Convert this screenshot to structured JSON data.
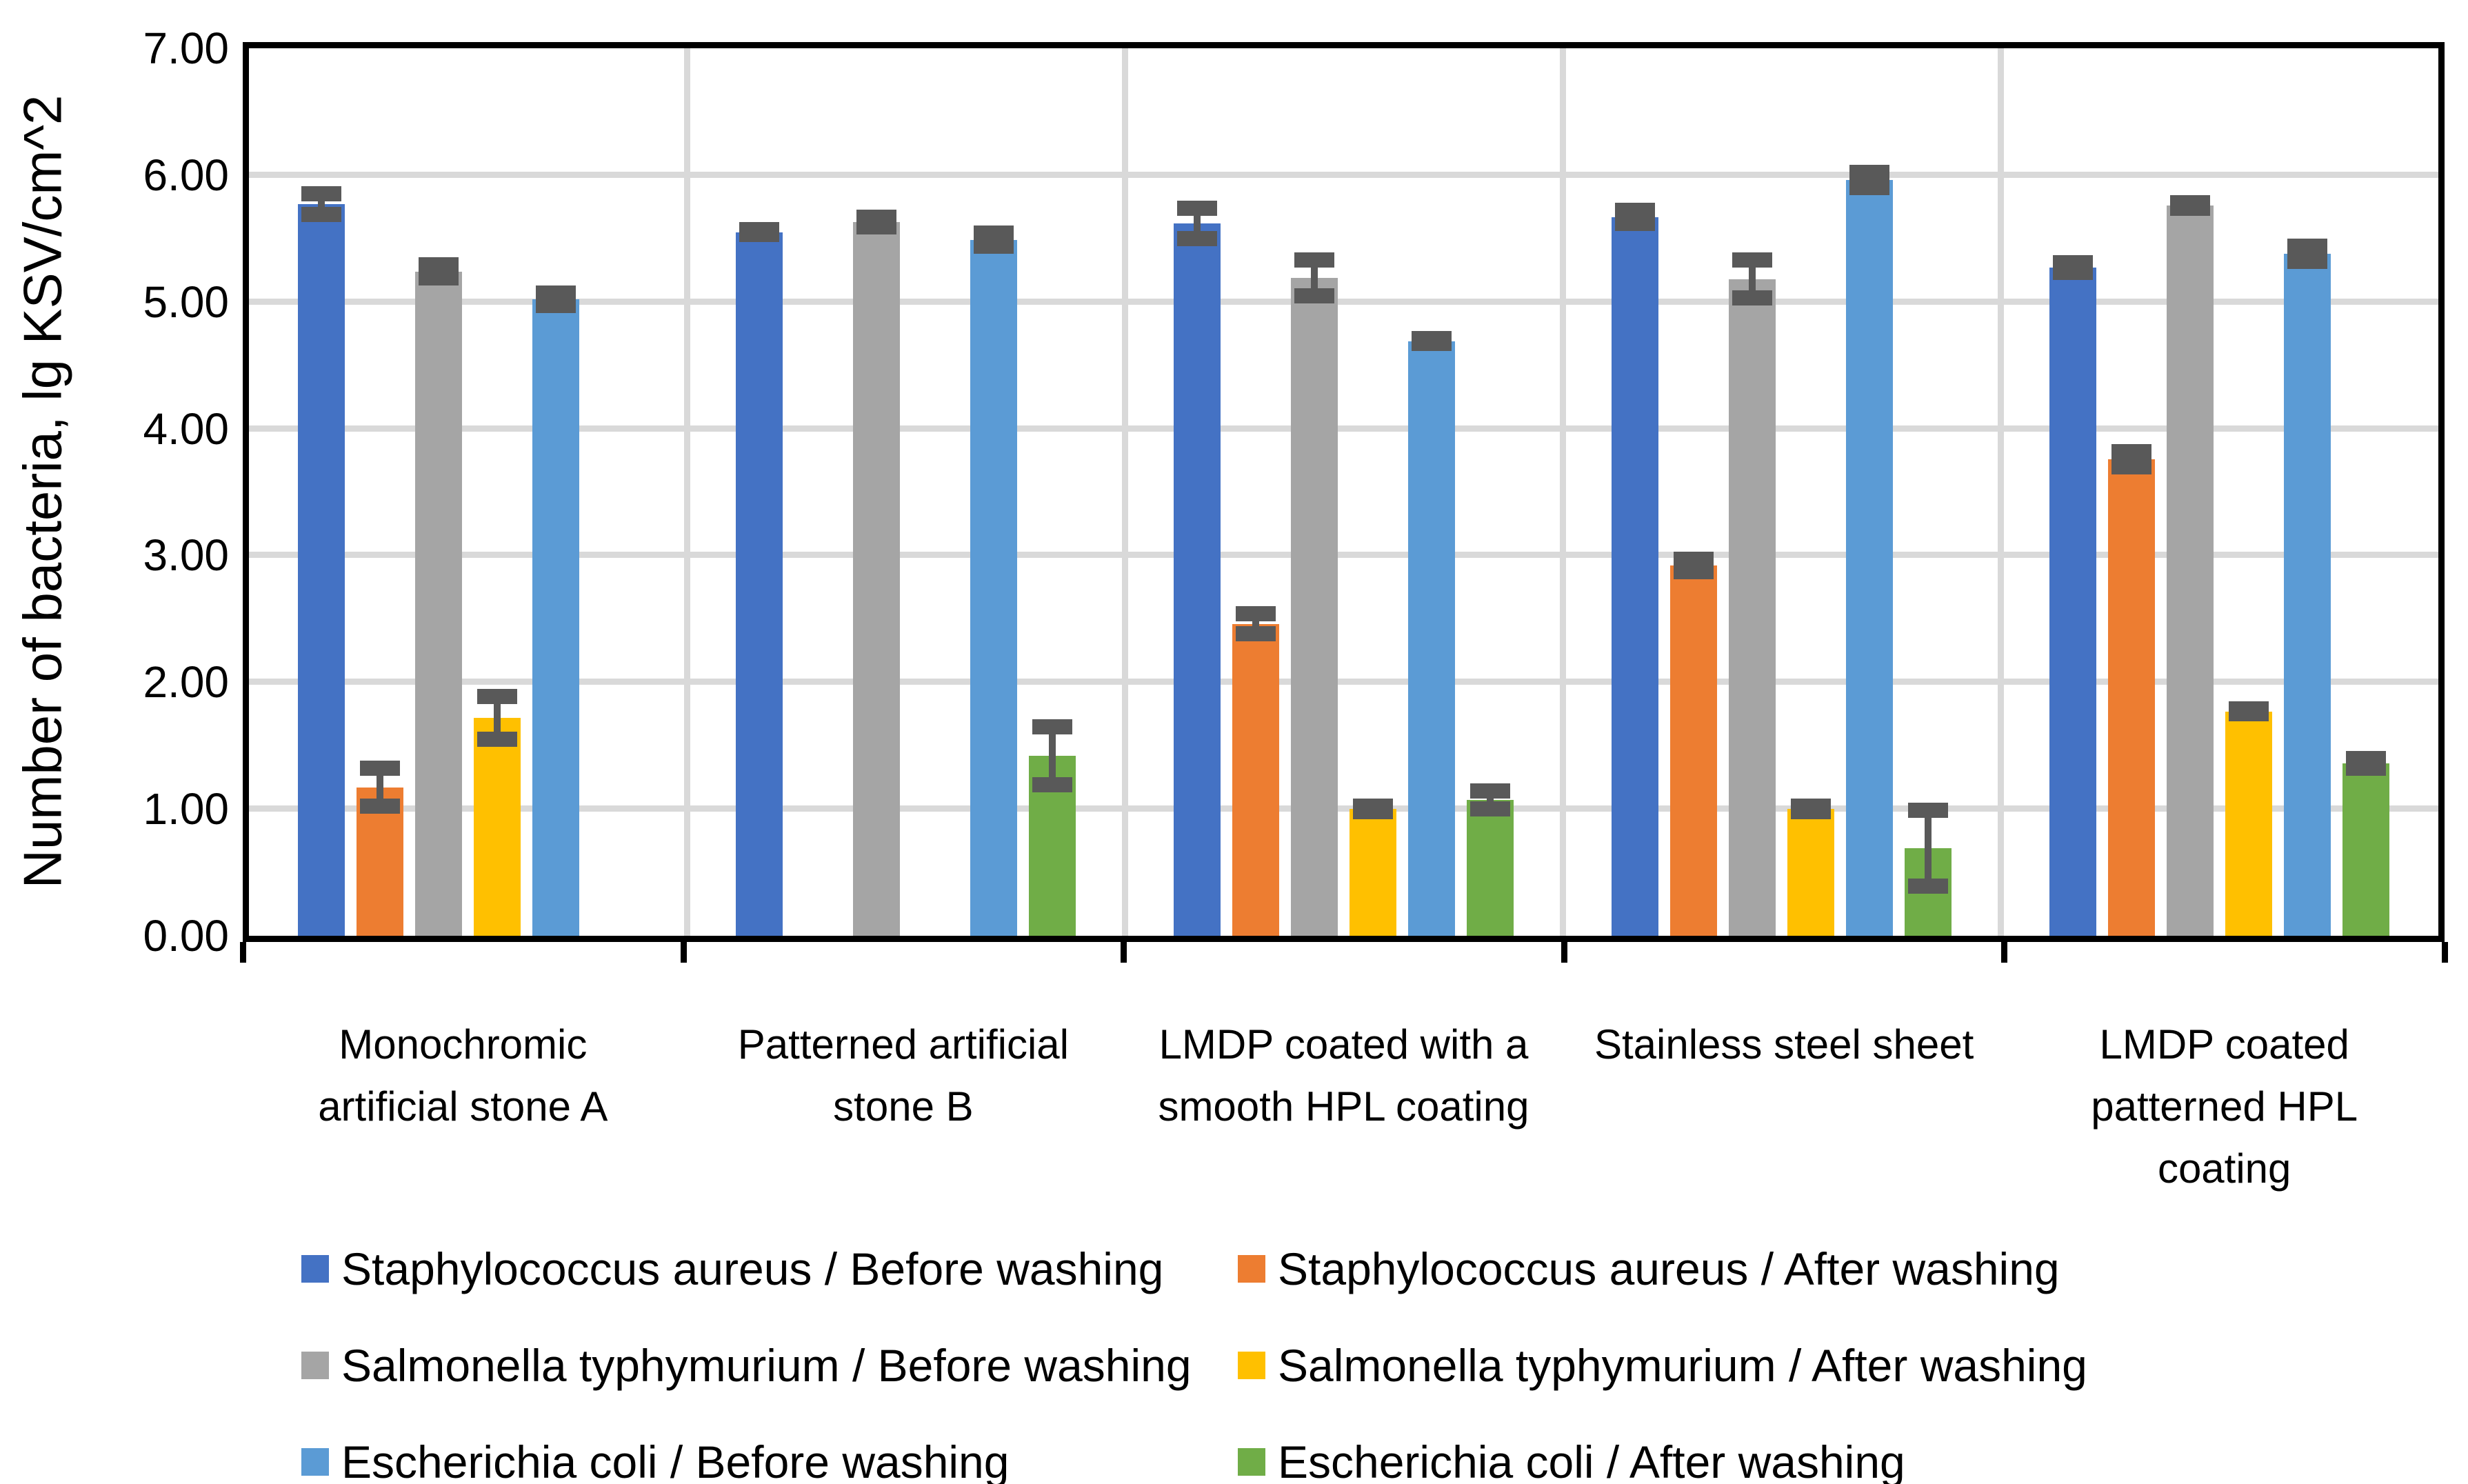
{
  "chart_data": {
    "type": "bar",
    "title": "",
    "xlabel": "",
    "ylabel": "Number of bacteria, lg KSV/cm^2",
    "ylim": [
      0,
      7
    ],
    "ytick_labels": [
      "0.00",
      "1.00",
      "2.00",
      "3.00",
      "4.00",
      "5.00",
      "6.00",
      "7.00"
    ],
    "grid": true,
    "legend_position": "bottom",
    "error_bars": true,
    "categories": [
      "Monochromic\nartificial stone A",
      "Patterned  artificial\nstone B",
      "LMDP coated with a\nsmooth HPL coating",
      "Stainless steel sheet",
      "LMDP coated\npatterned HPL\ncoating"
    ],
    "series": [
      {
        "name": "Staphylococcus aureus / Before washing",
        "color": "#4472C4",
        "values": [
          5.77,
          5.55,
          5.62,
          5.67,
          5.27
        ],
        "errors": [
          0.08,
          0.02,
          0.12,
          0.05,
          0.04
        ]
      },
      {
        "name": "Staphylococcus aureus / After washing",
        "color": "#ED7D31",
        "values": [
          1.17,
          null,
          2.46,
          2.92,
          3.76
        ],
        "errors": [
          0.15,
          null,
          0.08,
          0.05,
          0.06
        ]
      },
      {
        "name": "Salmonella typhymurium / Before washing",
        "color": "#A5A5A5",
        "values": [
          5.24,
          5.63,
          5.19,
          5.18,
          5.76
        ],
        "errors": [
          0.05,
          0.04,
          0.14,
          0.15,
          0.02
        ]
      },
      {
        "name": "Salmonella typhymurium / After washing",
        "color": "#FFC000",
        "values": [
          1.72,
          null,
          1.0,
          1.0,
          1.77
        ],
        "errors": [
          0.17,
          null,
          0.02,
          0.02,
          0.02
        ]
      },
      {
        "name": "Escherichia coli / Before washing",
        "color": "#5B9BD5",
        "values": [
          5.02,
          5.49,
          4.69,
          5.96,
          5.38
        ],
        "errors": [
          0.05,
          0.05,
          0.02,
          0.06,
          0.06
        ]
      },
      {
        "name": "Escherichia coli / After washing",
        "color": "#70AD47",
        "values": [
          null,
          1.42,
          1.07,
          0.69,
          1.36
        ],
        "errors": [
          null,
          0.23,
          0.07,
          0.3,
          0.04
        ]
      }
    ],
    "colors": {
      "gridline": "#D9D9D9",
      "axis_line": "#000000",
      "error_bar": "#595959",
      "text": "#000000",
      "background": "#FFFFFF"
    }
  }
}
